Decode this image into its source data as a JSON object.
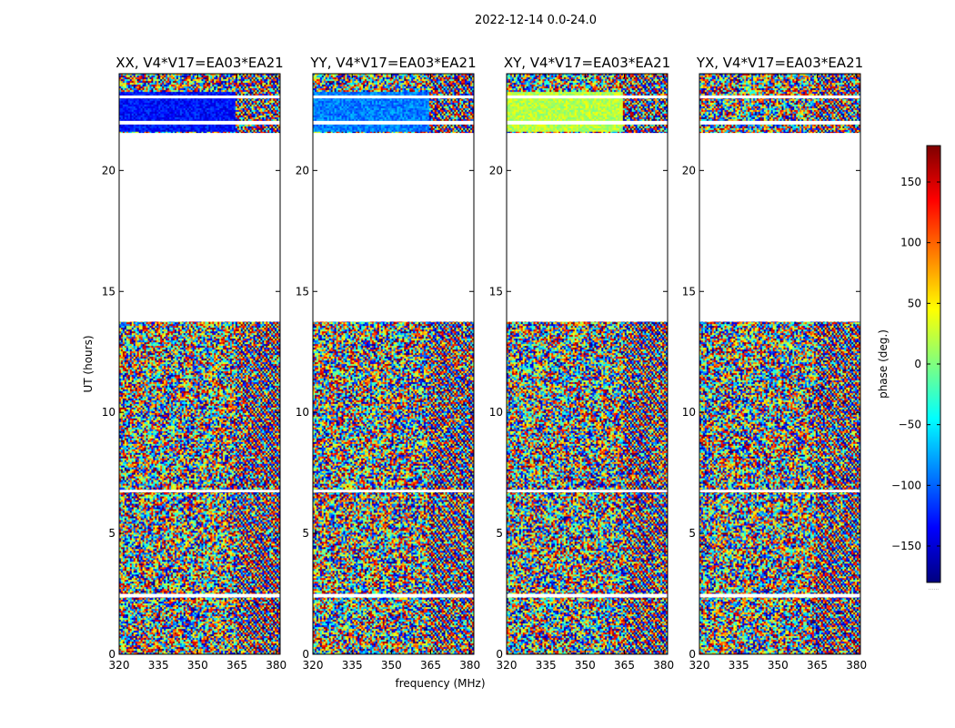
{
  "figure": {
    "suptitle": "2022-12-14 0.0-24.0"
  },
  "colors": {
    "jet": [
      "#00007f",
      "#0000ff",
      "#007fff",
      "#00ffff",
      "#7fff7f",
      "#ffff00",
      "#ff7f00",
      "#ff0000",
      "#7f0000"
    ],
    "background": "#ffffff",
    "axes": "#000000"
  },
  "chart_data": [
    {
      "type": "heatmap",
      "title": "XX, V4*V17=EA03*EA21",
      "xlabel": "",
      "ylabel": "UT (hours)",
      "xlim": [
        320,
        381.5
      ],
      "ylim": [
        0,
        24
      ],
      "xticks": [
        320,
        335,
        350,
        365,
        380
      ],
      "yticks": [
        0,
        5,
        10,
        15,
        20
      ],
      "data_gaps_ut": [
        [
          13.75,
          21.55
        ],
        [
          21.9,
          22.05
        ],
        [
          22.98,
          23.1
        ],
        [
          2.35,
          2.5
        ],
        [
          6.7,
          6.8
        ]
      ],
      "dominant_phase_deg_in_top_band": -130,
      "fringe_start_mhz": 364
    },
    {
      "type": "heatmap",
      "title": "YY, V4*V17=EA03*EA21",
      "xlabel": "frequency (MHz)",
      "ylabel": "",
      "xlim": [
        320,
        381.5
      ],
      "ylim": [
        0,
        24
      ],
      "xticks": [
        320,
        335,
        350,
        365,
        380
      ],
      "yticks": [
        0,
        5,
        10,
        15,
        20
      ],
      "data_gaps_ut": [
        [
          13.75,
          21.55
        ],
        [
          21.9,
          22.05
        ],
        [
          22.98,
          23.1
        ],
        [
          2.35,
          2.5
        ],
        [
          6.7,
          6.8
        ]
      ],
      "dominant_phase_deg_in_top_band": -90,
      "fringe_start_mhz": 364
    },
    {
      "type": "heatmap",
      "title": "XY, V4*V17=EA03*EA21",
      "xlabel": "",
      "ylabel": "",
      "xlim": [
        320,
        381.5
      ],
      "ylim": [
        0,
        24
      ],
      "xticks": [
        320,
        335,
        350,
        365,
        380
      ],
      "yticks": [
        0,
        5,
        10,
        15,
        20
      ],
      "data_gaps_ut": [
        [
          13.75,
          21.55
        ],
        [
          21.9,
          22.05
        ],
        [
          22.98,
          23.1
        ],
        [
          2.35,
          2.5
        ],
        [
          6.7,
          6.8
        ]
      ],
      "dominant_phase_deg_in_top_band": 20,
      "fringe_start_mhz": 364
    },
    {
      "type": "heatmap",
      "title": "YX, V4*V17=EA03*EA21",
      "xlabel": "",
      "ylabel": "",
      "xlim": [
        320,
        381.5
      ],
      "ylim": [
        0,
        24
      ],
      "xticks": [
        320,
        335,
        350,
        365,
        380
      ],
      "yticks": [
        0,
        5,
        10,
        15,
        20
      ],
      "data_gaps_ut": [
        [
          13.75,
          21.55
        ],
        [
          21.9,
          22.05
        ],
        [
          22.98,
          23.1
        ],
        [
          2.35,
          2.5
        ],
        [
          6.7,
          6.8
        ]
      ],
      "dominant_phase_deg_in_top_band": null,
      "fringe_start_mhz": 364
    }
  ],
  "colorbar": {
    "label": "phase (deg.)",
    "vmin": -180,
    "vmax": 180,
    "ticks": [
      -150,
      -100,
      -50,
      0,
      50,
      100,
      150
    ],
    "tick_labels": [
      "−150",
      "−100",
      "−50",
      "0",
      "50",
      "100",
      "150"
    ],
    "footer": "......"
  }
}
